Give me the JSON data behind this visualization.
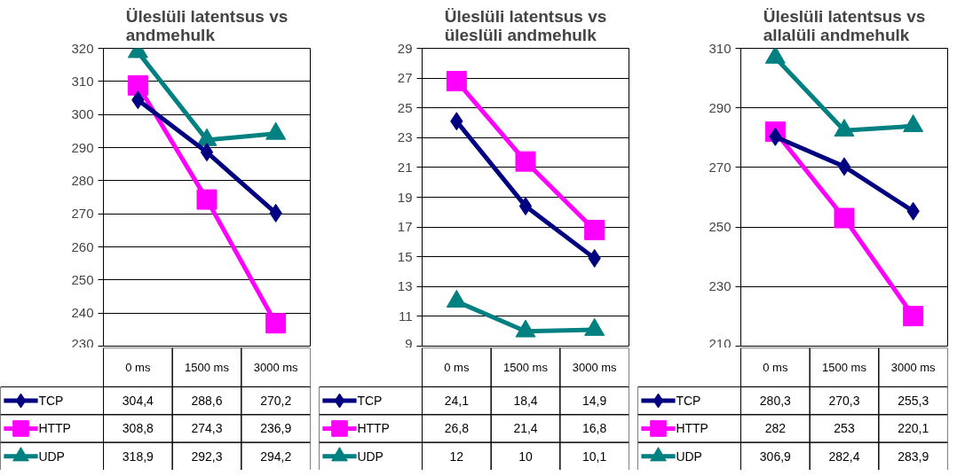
{
  "chart_data": [
    {
      "type": "line",
      "title": "Üleslüli latentsus vs andmehulk",
      "categories": [
        "0 ms",
        "1500 ms",
        "3000 ms"
      ],
      "ylim": [
        230,
        320
      ],
      "yticks": [
        230,
        240,
        250,
        260,
        270,
        280,
        290,
        300,
        310,
        320
      ],
      "grid": "y",
      "legend": "bottom",
      "series": [
        {
          "name": "TCP",
          "color": "#000080",
          "marker": "diamond",
          "values": [
            304.4,
            288.6,
            270.2
          ],
          "value_labels": [
            "304,4",
            "288,6",
            "270,2"
          ]
        },
        {
          "name": "HTTP",
          "color": "#ff00ff",
          "marker": "square",
          "values": [
            308.8,
            274.3,
            236.9
          ],
          "value_labels": [
            "308,8",
            "274,3",
            "236,9"
          ]
        },
        {
          "name": "UDP",
          "color": "#008080",
          "marker": "triangle",
          "values": [
            318.9,
            292.3,
            294.2
          ],
          "value_labels": [
            "318,9",
            "292,3",
            "294,2"
          ]
        }
      ]
    },
    {
      "type": "line",
      "title": "Üleslüli latentsus vs üleslüli andmehulk",
      "categories": [
        "0 ms",
        "1500 ms",
        "3000 ms"
      ],
      "ylim": [
        9,
        29
      ],
      "yticks": [
        9,
        11,
        13,
        15,
        17,
        19,
        21,
        23,
        25,
        27,
        29
      ],
      "grid": "y",
      "legend": "bottom",
      "series": [
        {
          "name": "TCP",
          "color": "#000080",
          "marker": "diamond",
          "values": [
            24.1,
            18.4,
            14.9
          ],
          "value_labels": [
            "24,1",
            "18,4",
            "14,9"
          ]
        },
        {
          "name": "HTTP",
          "color": "#ff00ff",
          "marker": "square",
          "values": [
            26.8,
            21.4,
            16.8
          ],
          "value_labels": [
            "26,8",
            "21,4",
            "16,8"
          ]
        },
        {
          "name": "UDP",
          "color": "#008080",
          "marker": "triangle",
          "values": [
            12,
            10,
            10.1
          ],
          "value_labels": [
            "12",
            "10",
            "10,1"
          ]
        }
      ]
    },
    {
      "type": "line",
      "title": "Üleslüli latentsus vs allalüli andmehulk",
      "categories": [
        "0 ms",
        "1500 ms",
        "3000 ms"
      ],
      "ylim": [
        210,
        310
      ],
      "yticks": [
        210,
        230,
        250,
        270,
        290,
        310
      ],
      "grid": "y",
      "legend": "bottom",
      "series": [
        {
          "name": "TCP",
          "color": "#000080",
          "marker": "diamond",
          "values": [
            280.3,
            270.3,
            255.3
          ],
          "value_labels": [
            "280,3",
            "270,3",
            "255,3"
          ]
        },
        {
          "name": "HTTP",
          "color": "#ff00ff",
          "marker": "square",
          "values": [
            282,
            253,
            220.1
          ],
          "value_labels": [
            "282",
            "253",
            "220,1"
          ]
        },
        {
          "name": "UDP",
          "color": "#008080",
          "marker": "triangle",
          "values": [
            306.9,
            282.4,
            283.9
          ],
          "value_labels": [
            "306,9",
            "282,4",
            "283,9"
          ]
        }
      ]
    }
  ]
}
